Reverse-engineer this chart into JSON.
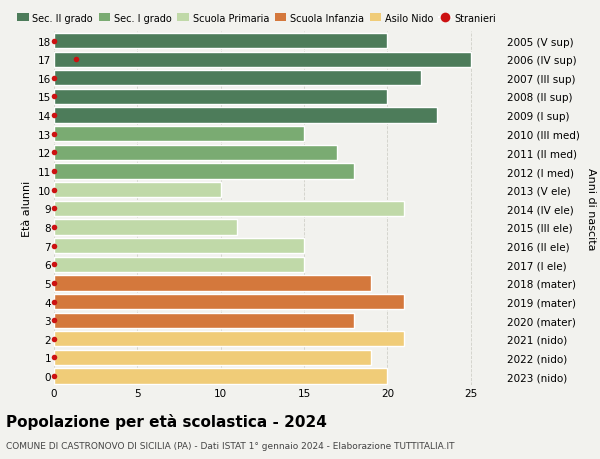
{
  "ages": [
    18,
    17,
    16,
    15,
    14,
    13,
    12,
    11,
    10,
    9,
    8,
    7,
    6,
    5,
    4,
    3,
    2,
    1,
    0
  ],
  "values": [
    20,
    25,
    22,
    20,
    23,
    15,
    17,
    18,
    10,
    21,
    11,
    15,
    15,
    19,
    21,
    18,
    21,
    19,
    20
  ],
  "right_labels": [
    "2005 (V sup)",
    "2006 (IV sup)",
    "2007 (III sup)",
    "2008 (II sup)",
    "2009 (I sup)",
    "2010 (III med)",
    "2011 (II med)",
    "2012 (I med)",
    "2013 (V ele)",
    "2014 (IV ele)",
    "2015 (III ele)",
    "2016 (II ele)",
    "2017 (I ele)",
    "2018 (mater)",
    "2019 (mater)",
    "2020 (mater)",
    "2021 (nido)",
    "2022 (nido)",
    "2023 (nido)"
  ],
  "bar_colors": [
    "#4d7c5a",
    "#4d7c5a",
    "#4d7c5a",
    "#4d7c5a",
    "#4d7c5a",
    "#7aab72",
    "#7aab72",
    "#7aab72",
    "#c0d9a8",
    "#c0d9a8",
    "#c0d9a8",
    "#c0d9a8",
    "#c0d9a8",
    "#d4783c",
    "#d4783c",
    "#d4783c",
    "#f0cc78",
    "#f0cc78",
    "#f0cc78"
  ],
  "stranieri_x": [
    0,
    1.3,
    0,
    0,
    0,
    0,
    0,
    0,
    0,
    0,
    0,
    0,
    0,
    0,
    0,
    0,
    0,
    0,
    0
  ],
  "stranieri_color": "#cc1111",
  "title": "Popolazione per età scolastica - 2024",
  "subtitle": "COMUNE DI CASTRONOVO DI SICILIA (PA) - Dati ISTAT 1° gennaio 2024 - Elaborazione TUTTITALIA.IT",
  "ylabel_left": "Età alunni",
  "ylabel_right": "Anni di nascita",
  "xlim": [
    0,
    27
  ],
  "xticks": [
    0,
    5,
    10,
    15,
    20,
    25
  ],
  "legend_labels": [
    "Sec. II grado",
    "Sec. I grado",
    "Scuola Primaria",
    "Scuola Infanzia",
    "Asilo Nido",
    "Stranieri"
  ],
  "legend_colors": [
    "#4d7c5a",
    "#7aab72",
    "#c0d9a8",
    "#d4783c",
    "#f0cc78",
    "#cc1111"
  ],
  "background_color": "#f2f2ee",
  "grid_color": "#d0d0c8",
  "bar_height": 0.82,
  "title_fontsize": 11,
  "subtitle_fontsize": 6.5,
  "tick_fontsize": 7.5,
  "legend_fontsize": 7
}
